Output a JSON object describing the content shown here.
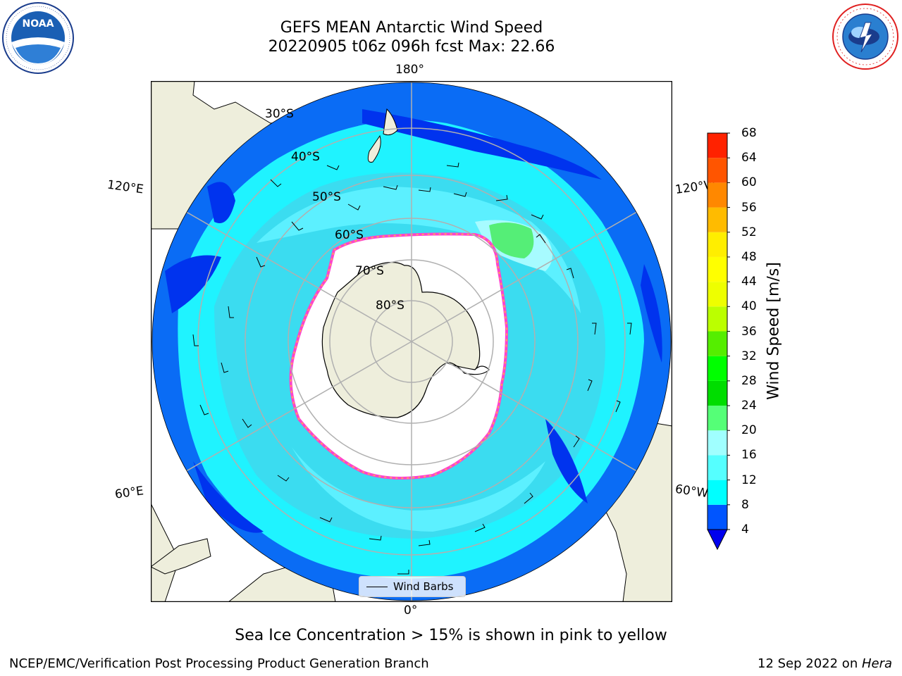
{
  "header": {
    "title_line1": "GEFS MEAN Antarctic Wind Speed",
    "title_line2": "20220905 t06z 096h fcst   Max: 22.66"
  },
  "logos": {
    "left": {
      "name": "noaa-logo",
      "text": "NOAA",
      "ring_text": "NATIONAL OCEANIC AND ATMOSPHERIC ADMINISTRATION · U.S. DEPARTMENT OF COMMERCE"
    },
    "right": {
      "name": "nws-logo",
      "ring_text": "NATIONAL WEATHER SERVICE"
    }
  },
  "map": {
    "projection": "south polar stereographic",
    "longitude_labels": {
      "top": "180°",
      "bottom": "0°",
      "left_upper": "120°E",
      "left_lower": "60°E",
      "right_upper": "120°W",
      "right_lower": "60°W"
    },
    "latitude_labels": [
      "30°S",
      "40°S",
      "50°S",
      "60°S",
      "70°S",
      "80°S"
    ],
    "colors": {
      "land": "#eeeedc",
      "ice_free": "#ffffff",
      "grid": "#b0b0b0",
      "coast": "#000000",
      "sea_ice_edge": "#ff44cc"
    },
    "legend": {
      "label": "Wind Barbs"
    }
  },
  "colorbar": {
    "label": "Wind Speed [m/s]",
    "ticks": [
      "68",
      "64",
      "60",
      "56",
      "52",
      "48",
      "44",
      "40",
      "36",
      "32",
      "28",
      "24",
      "20",
      "16",
      "12",
      "8",
      "4"
    ],
    "colors": [
      "#0055ff",
      "#00ffff",
      "#55ffff",
      "#a0ffff",
      "#55ff77",
      "#00dd00",
      "#00ff00",
      "#55ee00",
      "#bbff00",
      "#eeff00",
      "#ffff00",
      "#ffee00",
      "#ffbb00",
      "#ff8800",
      "#ff5500",
      "#ff2200",
      "#ff0000"
    ],
    "extend_color": "#0000ee"
  },
  "caption": "Sea Ice Concentration > 15% is shown in pink to yellow",
  "footer": {
    "left": "NCEP/EMC/Verification Post Processing Product Generation Branch",
    "right_date": "12 Sep 2022 on ",
    "right_host": "Hera"
  }
}
